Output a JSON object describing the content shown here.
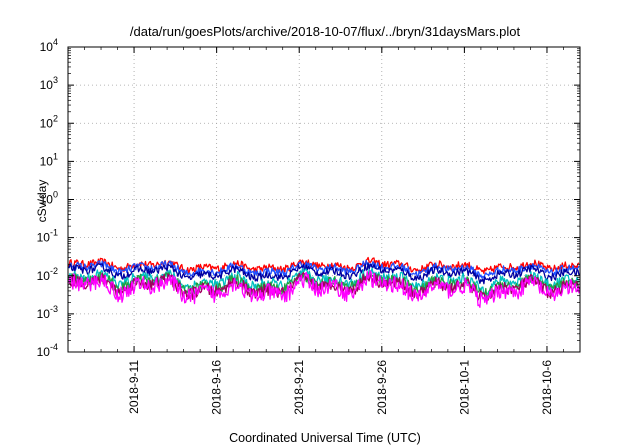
{
  "chart_data": {
    "type": "line",
    "title": "/data/run/goesPlots/archive/2018-10-07/flux/../bryn/31daysMars.plot",
    "xlabel": "Coordinated Universal Time (UTC)",
    "ylabel": "cSv/day",
    "y_scale": "log",
    "ylim": [
      0.0001,
      10000
    ],
    "y_ticks": [
      {
        "base": "10",
        "exp": "-4"
      },
      {
        "base": "10",
        "exp": "-3"
      },
      {
        "base": "10",
        "exp": "-2"
      },
      {
        "base": "10",
        "exp": "-1"
      },
      {
        "base": "10",
        "exp": "0"
      },
      {
        "base": "10",
        "exp": "1"
      },
      {
        "base": "10",
        "exp": "2"
      },
      {
        "base": "10",
        "exp": "3"
      },
      {
        "base": "10",
        "exp": "4"
      }
    ],
    "xlim": [
      "2018-09-07",
      "2018-10-08"
    ],
    "x_ticks": [
      "2018-9-11",
      "2018-9-16",
      "2018-9-21",
      "2018-9-26",
      "2018-10-1",
      "2018-10-6"
    ],
    "x_tick_dates": [
      "2018-09-11",
      "2018-09-16",
      "2018-09-21",
      "2018-09-26",
      "2018-10-01",
      "2018-10-06"
    ],
    "grid": true,
    "series": [
      {
        "color": "#ff0000",
        "level": 0.018,
        "spread": 0.1
      },
      {
        "color": "#1f4fff",
        "level": 0.015,
        "spread": 0.1
      },
      {
        "color": "#0000a0",
        "level": 0.012,
        "spread": 0.1
      },
      {
        "color": "#00c0c0",
        "level": 0.0075,
        "spread": 0.14
      },
      {
        "color": "#20a040",
        "level": 0.0062,
        "spread": 0.14
      },
      {
        "color": "#a00060",
        "level": 0.0052,
        "spread": 0.16
      },
      {
        "color": "#ff00ff",
        "level": 0.0045,
        "spread": 0.22
      }
    ]
  }
}
